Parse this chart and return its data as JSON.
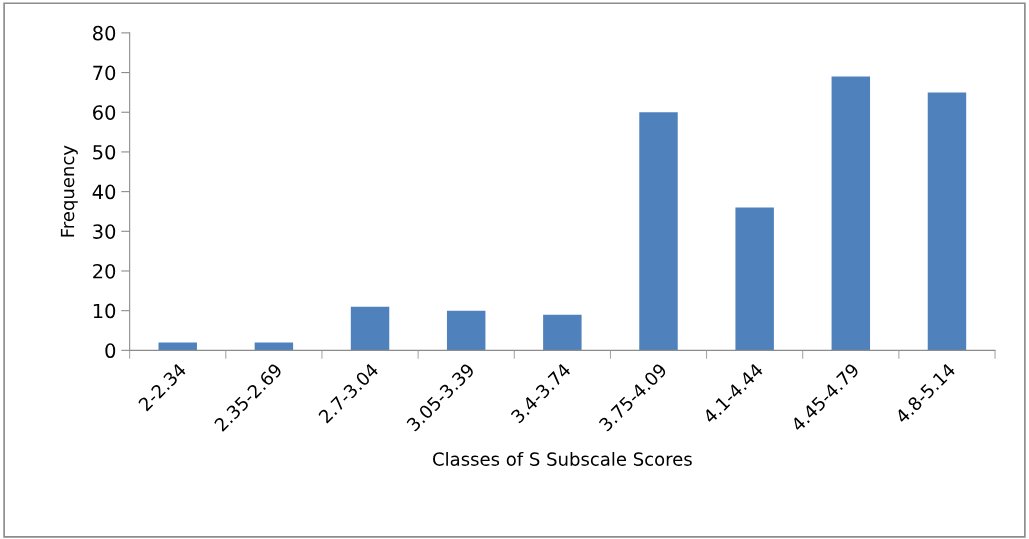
{
  "chart_data": {
    "type": "bar",
    "xlabel": "Classes of S Subscale Scores",
    "ylabel": "Frequency",
    "categories": [
      "2-2.34",
      "2.35-2.69",
      "2.7-3.04",
      "3.05-3.39",
      "3.4-3.74",
      "3.75-4.09",
      "4.1-4.44",
      "4.45-4.79",
      "4.8-5.14"
    ],
    "values": [
      2,
      2,
      11,
      10,
      9,
      60,
      36,
      69,
      65
    ],
    "color": "#4f81bd",
    "ylim": [
      0,
      80
    ],
    "yticks": [
      0,
      10,
      20,
      30,
      40,
      50,
      60,
      70,
      80
    ],
    "grid": false,
    "legend": false
  }
}
